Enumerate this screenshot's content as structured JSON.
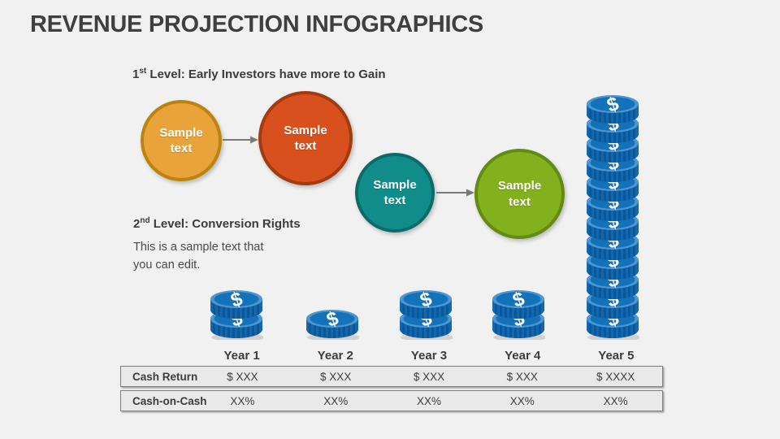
{
  "title": "REVENUE PROJECTION INFOGRAPHICS",
  "level1": {
    "num": "1",
    "sup": "st",
    "rest": " Level: Early Investors have more to Gain"
  },
  "level2": {
    "num": "2",
    "sup": "nd",
    "rest": " Level: Conversion Rights"
  },
  "note": {
    "line1": "This is a sample text that",
    "line2": "you can edit."
  },
  "circles": [
    {
      "line1": "Sample",
      "line2": "text",
      "fill": "#E8A33B",
      "border": "#BD830F"
    },
    {
      "line1": "Sample",
      "line2": "text",
      "fill": "#D8501D",
      "border": "#A23B10"
    },
    {
      "line1": "Sample",
      "line2": "text",
      "fill": "#108D8B",
      "border": "#0B6B69"
    },
    {
      "line1": "Sample",
      "line2": "text",
      "fill": "#83B01D",
      "border": "#638A12"
    }
  ],
  "arrow_color": "#7a7a7a",
  "coin_colors": {
    "face": "#1472B8",
    "rim": "#4C96D3",
    "side": "#1168AE",
    "stripe": "#0C5795",
    "bottom": "#0E5FA3",
    "symbol_text": "$",
    "symbol_color": "#FFFFFF",
    "shadow": "rgba(0,0,0,0.13)"
  },
  "chart_data": {
    "type": "bar",
    "title": "Revenue projection as coin stacks per year",
    "categories": [
      "Year 1",
      "Year 2",
      "Year 3",
      "Year 4",
      "Year 5"
    ],
    "values": [
      2,
      1,
      2,
      2,
      12
    ],
    "unit": "coins",
    "legend": false,
    "grid": false
  },
  "years": [
    {
      "label": "Year 1",
      "coins": 2,
      "cash_return": "$ XXX",
      "cash_on_cash": "XX%"
    },
    {
      "label": "Year 2",
      "coins": 1,
      "cash_return": "$ XXX",
      "cash_on_cash": "XX%"
    },
    {
      "label": "Year 3",
      "coins": 2,
      "cash_return": "$ XXX",
      "cash_on_cash": "XX%"
    },
    {
      "label": "Year 4",
      "coins": 2,
      "cash_return": "$ XXX",
      "cash_on_cash": "XX%"
    },
    {
      "label": "Year 5",
      "coins": 12,
      "cash_return": "$ XXXX",
      "cash_on_cash": "XX%"
    }
  ],
  "table": {
    "row1_label": "Cash Return",
    "row2_label": "Cash-on-Cash"
  }
}
